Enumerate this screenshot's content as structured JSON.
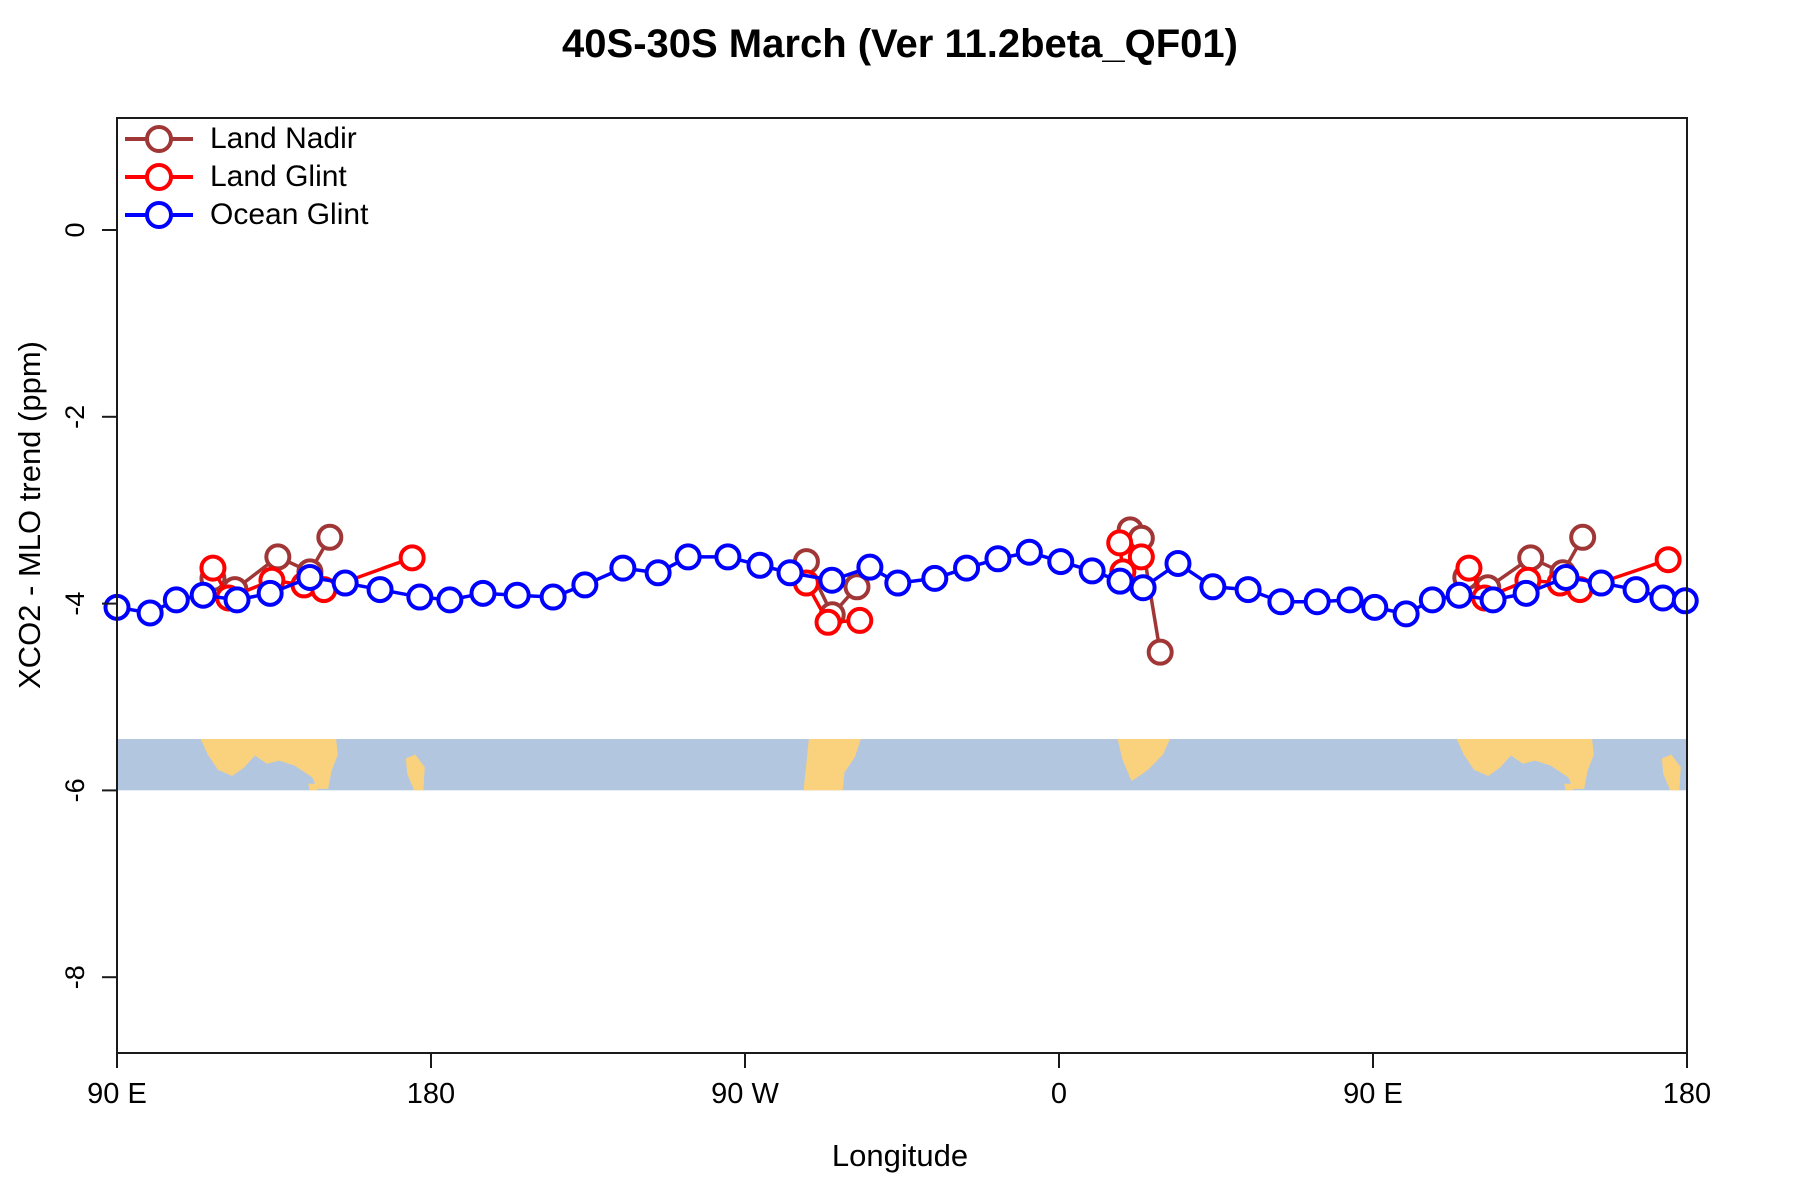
{
  "chart_data": {
    "type": "line",
    "title": "40S-30S March (Ver 11.2beta_QF01)",
    "xlabel": "Longitude",
    "ylabel": "XCO2 - MLO trend (ppm)",
    "grid": false,
    "legend_position": "top-left",
    "xlim": [
      90,
      540
    ],
    "ylim": [
      -8.8,
      1.2
    ],
    "x_ticks": [
      {
        "lon": 90,
        "label": "90 E"
      },
      {
        "lon": 180,
        "label": "180"
      },
      {
        "lon": 270,
        "label": "90 W"
      },
      {
        "lon": 360,
        "label": "0"
      },
      {
        "lon": 450,
        "label": "90 E"
      },
      {
        "lon": 540,
        "label": "180"
      }
    ],
    "y_ticks": [
      {
        "value": 0,
        "label": "0"
      },
      {
        "value": -2,
        "label": "-2"
      },
      {
        "value": -4,
        "label": "-4"
      },
      {
        "value": -6,
        "label": "-6"
      },
      {
        "value": -8,
        "label": "-8"
      }
    ],
    "series": [
      {
        "name": "Land Nadir",
        "color": "#A03636",
        "segments": [
          [
            [
              117.5,
              -3.73
            ],
            [
              123.8,
              -3.85
            ],
            [
              136.1,
              -3.5
            ],
            [
              145.3,
              -3.66
            ],
            [
              151.0,
              -3.29
            ]
          ],
          [
            [
              287.6,
              -3.55
            ],
            [
              295.0,
              -4.12
            ],
            [
              302.1,
              -3.82
            ]
          ],
          [
            [
              380.4,
              -3.21
            ],
            [
              383.6,
              -3.3
            ],
            [
              389.0,
              -4.52
            ]
          ],
          [
            [
              476.6,
              -3.72
            ],
            [
              482.9,
              -3.83
            ],
            [
              495.2,
              -3.51
            ],
            [
              504.4,
              -3.67
            ],
            [
              510.1,
              -3.29
            ]
          ]
        ]
      },
      {
        "name": "Land Glint",
        "color": "#FF0000",
        "segments": [
          [
            [
              117.5,
              -3.62
            ],
            [
              122.0,
              -3.94
            ],
            [
              134.4,
              -3.75
            ],
            [
              143.6,
              -3.8
            ],
            [
              149.3,
              -3.85
            ],
            [
              174.6,
              -3.51
            ]
          ],
          [
            [
              287.6,
              -3.78
            ],
            [
              293.8,
              -4.2
            ],
            [
              302.9,
              -4.18
            ]
          ],
          [
            [
              377.4,
              -3.35
            ],
            [
              378.3,
              -3.66
            ],
            [
              383.6,
              -3.5
            ]
          ],
          [
            [
              477.5,
              -3.62
            ],
            [
              482.0,
              -3.94
            ],
            [
              494.4,
              -3.75
            ],
            [
              503.6,
              -3.78
            ],
            [
              509.3,
              -3.85
            ],
            [
              534.6,
              -3.53
            ]
          ]
        ]
      },
      {
        "name": "Ocean Glint",
        "color": "#0000FF",
        "segments": [
          [
            [
              90,
              -4.04
            ],
            [
              99.5,
              -4.1
            ],
            [
              107,
              -3.96
            ],
            [
              114.7,
              -3.91
            ],
            [
              124.4,
              -3.96
            ],
            [
              133.9,
              -3.89
            ],
            [
              145.3,
              -3.72
            ],
            [
              155.4,
              -3.78
            ],
            [
              165.4,
              -3.85
            ],
            [
              176.8,
              -3.93
            ],
            [
              185.4,
              -3.96
            ],
            [
              194.9,
              -3.89
            ],
            [
              204.7,
              -3.91
            ],
            [
              215.0,
              -3.93
            ],
            [
              224.1,
              -3.8
            ],
            [
              235.0,
              -3.62
            ],
            [
              245.1,
              -3.67
            ],
            [
              253.7,
              -3.5
            ],
            [
              265.1,
              -3.5
            ],
            [
              274.3,
              -3.59
            ],
            [
              282.9,
              -3.67
            ],
            [
              294.9,
              -3.75
            ],
            [
              305.8,
              -3.61
            ],
            [
              313.8,
              -3.78
            ],
            [
              324.4,
              -3.73
            ],
            [
              333.5,
              -3.62
            ],
            [
              342.5,
              -3.52
            ],
            [
              351.5,
              -3.45
            ],
            [
              360.5,
              -3.55
            ],
            [
              369.5,
              -3.65
            ],
            [
              377.5,
              -3.76
            ],
            [
              384.1,
              -3.83
            ],
            [
              394.1,
              -3.57
            ],
            [
              404.1,
              -3.82
            ],
            [
              414.2,
              -3.85
            ],
            [
              423.6,
              -3.98
            ],
            [
              434.0,
              -3.98
            ],
            [
              443.4,
              -3.96
            ],
            [
              450.5,
              -4.04
            ],
            [
              459.5,
              -4.11
            ],
            [
              467.0,
              -3.96
            ],
            [
              474.7,
              -3.91
            ],
            [
              484.4,
              -3.96
            ],
            [
              493.9,
              -3.89
            ],
            [
              505.3,
              -3.72
            ],
            [
              515.4,
              -3.78
            ],
            [
              525.4,
              -3.85
            ],
            [
              533.1,
              -3.94
            ],
            [
              539.5,
              -3.97
            ]
          ]
        ]
      }
    ],
    "map_band": {
      "y_top": -5.45,
      "y_bottom": -6.0,
      "ocean_color": "#B3C6E0",
      "land_color": "#FAD27E",
      "land_polygons": [
        {
          "name": "australia",
          "points": [
            [
              114,
              0.0
            ],
            [
              152.8,
              0.0
            ],
            [
              153.3,
              0.3
            ],
            [
              151.5,
              0.62
            ],
            [
              150.5,
              0.97
            ],
            [
              147.5,
              0.97
            ],
            [
              146.0,
              0.75
            ],
            [
              141.0,
              0.52
            ],
            [
              136.5,
              0.42
            ],
            [
              133.0,
              0.48
            ],
            [
              129.5,
              0.32
            ],
            [
              126.5,
              0.55
            ],
            [
              123.0,
              0.72
            ],
            [
              119.0,
              0.6
            ],
            [
              116.0,
              0.3
            ]
          ]
        },
        {
          "name": "tasmania",
          "points": [
            [
              144.8,
              0.87
            ],
            [
              147.5,
              0.87
            ],
            [
              147.3,
              1.0
            ],
            [
              145.2,
              1.0
            ]
          ]
        },
        {
          "name": "new-zealand",
          "points": [
            [
              172.8,
              0.38
            ],
            [
              175.5,
              0.3
            ],
            [
              178.2,
              0.55
            ],
            [
              177.8,
              1.0
            ],
            [
              175.2,
              1.0
            ],
            [
              173.2,
              0.68
            ]
          ]
        },
        {
          "name": "south-america",
          "points": [
            [
              286.8,
              1.0
            ],
            [
              288.3,
              0.0
            ],
            [
              303.2,
              0.0
            ],
            [
              301.5,
              0.35
            ],
            [
              298.5,
              0.65
            ],
            [
              298.0,
              1.0
            ]
          ]
        },
        {
          "name": "africa",
          "points": [
            [
              376.8,
              0.0
            ],
            [
              391.8,
              0.0
            ],
            [
              389.8,
              0.3
            ],
            [
              385.5,
              0.6
            ],
            [
              380.8,
              0.82
            ],
            [
              378.2,
              0.4
            ]
          ]
        }
      ]
    }
  }
}
